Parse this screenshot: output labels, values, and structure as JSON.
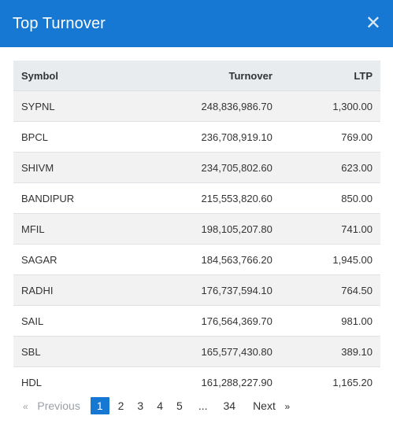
{
  "modal": {
    "title": "Top Turnover",
    "close_symbol": "✕"
  },
  "table": {
    "headers": {
      "symbol": "Symbol",
      "turnover": "Turnover",
      "ltp": "LTP"
    },
    "rows": [
      {
        "symbol": "SYPNL",
        "turnover": "248,836,986.70",
        "ltp": "1,300.00"
      },
      {
        "symbol": "BPCL",
        "turnover": "236,708,919.10",
        "ltp": "769.00"
      },
      {
        "symbol": "SHIVM",
        "turnover": "234,705,802.60",
        "ltp": "623.00"
      },
      {
        "symbol": "BANDIPUR",
        "turnover": "215,553,820.60",
        "ltp": "850.00"
      },
      {
        "symbol": "MFIL",
        "turnover": "198,105,207.80",
        "ltp": "741.00"
      },
      {
        "symbol": "SAGAR",
        "turnover": "184,563,766.20",
        "ltp": "1,945.00"
      },
      {
        "symbol": "RADHI",
        "turnover": "176,737,594.10",
        "ltp": "764.50"
      },
      {
        "symbol": "SAIL",
        "turnover": "176,564,369.70",
        "ltp": "981.00"
      },
      {
        "symbol": "SBL",
        "turnover": "165,577,430.80",
        "ltp": "389.10"
      },
      {
        "symbol": "HDL",
        "turnover": "161,288,227.90",
        "ltp": "1,165.20"
      }
    ]
  },
  "pagination": {
    "prev_chevron": "«",
    "prev_label": "Previous",
    "pages": [
      "1",
      "2",
      "3",
      "4",
      "5"
    ],
    "active_page": "1",
    "ellipsis": "...",
    "last_page": "34",
    "next_label": "Next",
    "next_chevron": "»"
  },
  "colors": {
    "header_bg": "#1678d2",
    "active_page_bg": "#1678d2"
  }
}
